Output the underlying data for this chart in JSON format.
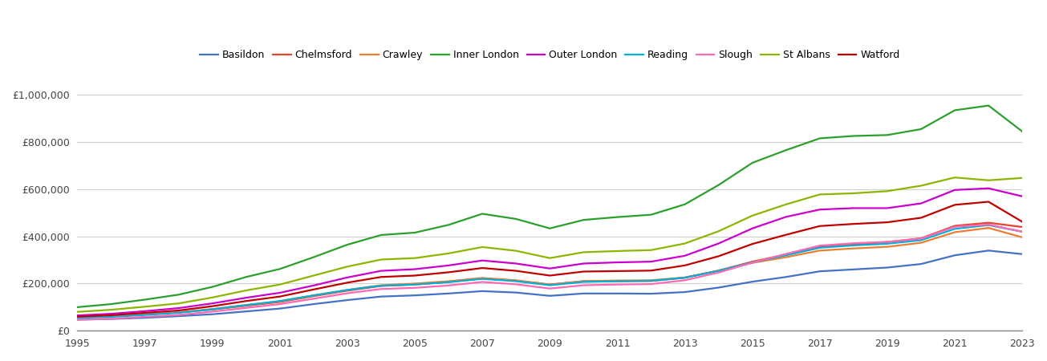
{
  "years": [
    1995,
    1996,
    1997,
    1998,
    1999,
    2000,
    2001,
    2002,
    2003,
    2004,
    2005,
    2006,
    2007,
    2008,
    2009,
    2010,
    2011,
    2012,
    2013,
    2014,
    2015,
    2016,
    2017,
    2018,
    2019,
    2020,
    2021,
    2022,
    2023
  ],
  "series": {
    "Basildon": [
      47000,
      50000,
      55000,
      62000,
      70000,
      82000,
      94000,
      113000,
      130000,
      145000,
      150000,
      158000,
      168000,
      162000,
      148000,
      158000,
      158000,
      157000,
      164000,
      183000,
      208000,
      228000,
      252000,
      260000,
      268000,
      283000,
      320000,
      340000,
      325000
    ],
    "Chelmsford": [
      58000,
      63000,
      70000,
      78000,
      90000,
      106000,
      122000,
      147000,
      170000,
      190000,
      196000,
      207000,
      222000,
      212000,
      196000,
      210000,
      210000,
      211000,
      225000,
      255000,
      293000,
      323000,
      356000,
      366000,
      376000,
      392000,
      445000,
      458000,
      440000
    ],
    "Crawley": [
      57000,
      62000,
      69000,
      78000,
      92000,
      109000,
      125000,
      150000,
      173000,
      193000,
      200000,
      210000,
      224000,
      214000,
      196000,
      210000,
      213000,
      214000,
      226000,
      255000,
      288000,
      312000,
      340000,
      349000,
      356000,
      373000,
      418000,
      436000,
      396000
    ],
    "Inner London": [
      100000,
      113000,
      132000,
      153000,
      186000,
      228000,
      262000,
      312000,
      365000,
      406000,
      416000,
      449000,
      496000,
      474000,
      434000,
      470000,
      482000,
      492000,
      536000,
      618000,
      712000,
      766000,
      816000,
      826000,
      830000,
      855000,
      935000,
      955000,
      845000
    ],
    "Outer London": [
      65000,
      72000,
      83000,
      96000,
      116000,
      140000,
      161000,
      192000,
      226000,
      254000,
      261000,
      277000,
      298000,
      285000,
      264000,
      285000,
      290000,
      293000,
      318000,
      370000,
      434000,
      483000,
      514000,
      520000,
      520000,
      540000,
      597000,
      604000,
      570000
    ],
    "Reading": [
      54000,
      59000,
      67000,
      76000,
      91000,
      109000,
      126000,
      150000,
      173000,
      191000,
      196000,
      206000,
      220000,
      210000,
      193000,
      207000,
      210000,
      212000,
      225000,
      254000,
      290000,
      320000,
      352000,
      362000,
      369000,
      384000,
      432000,
      448000,
      420000
    ],
    "Slough": [
      47000,
      51000,
      59000,
      67000,
      81000,
      97000,
      113000,
      136000,
      159000,
      177000,
      182000,
      192000,
      207000,
      197000,
      179000,
      193000,
      196000,
      198000,
      214000,
      247000,
      289000,
      326000,
      361000,
      371000,
      377000,
      391000,
      441000,
      450000,
      420000
    ],
    "St Albans": [
      80000,
      89000,
      102000,
      116000,
      141000,
      171000,
      196000,
      234000,
      272000,
      302000,
      308000,
      328000,
      355000,
      339000,
      308000,
      333000,
      338000,
      342000,
      370000,
      422000,
      488000,
      536000,
      578000,
      583000,
      592000,
      615000,
      650000,
      638000,
      648000
    ],
    "Watford": [
      60000,
      66000,
      76000,
      86000,
      104000,
      126000,
      145000,
      175000,
      204000,
      228000,
      234000,
      248000,
      266000,
      254000,
      234000,
      251000,
      253000,
      255000,
      277000,
      316000,
      368000,
      407000,
      444000,
      453000,
      460000,
      479000,
      534000,
      547000,
      462000
    ]
  },
  "colors": {
    "Basildon": "#4472c4",
    "Chelmsford": "#e8432d",
    "Crawley": "#ed7d31",
    "Inner London": "#2ca02c",
    "Outer London": "#cc00cc",
    "Reading": "#00b0d8",
    "Slough": "#ff69b4",
    "St Albans": "#8db600",
    "Watford": "#c00000"
  },
  "ylim": [
    0,
    1050000
  ],
  "yticks": [
    0,
    200000,
    400000,
    600000,
    800000,
    1000000
  ],
  "xticks": [
    1995,
    1997,
    1999,
    2001,
    2003,
    2005,
    2007,
    2009,
    2011,
    2013,
    2015,
    2017,
    2019,
    2021,
    2023
  ],
  "background_color": "#ffffff",
  "grid_color": "#d0d0d0"
}
